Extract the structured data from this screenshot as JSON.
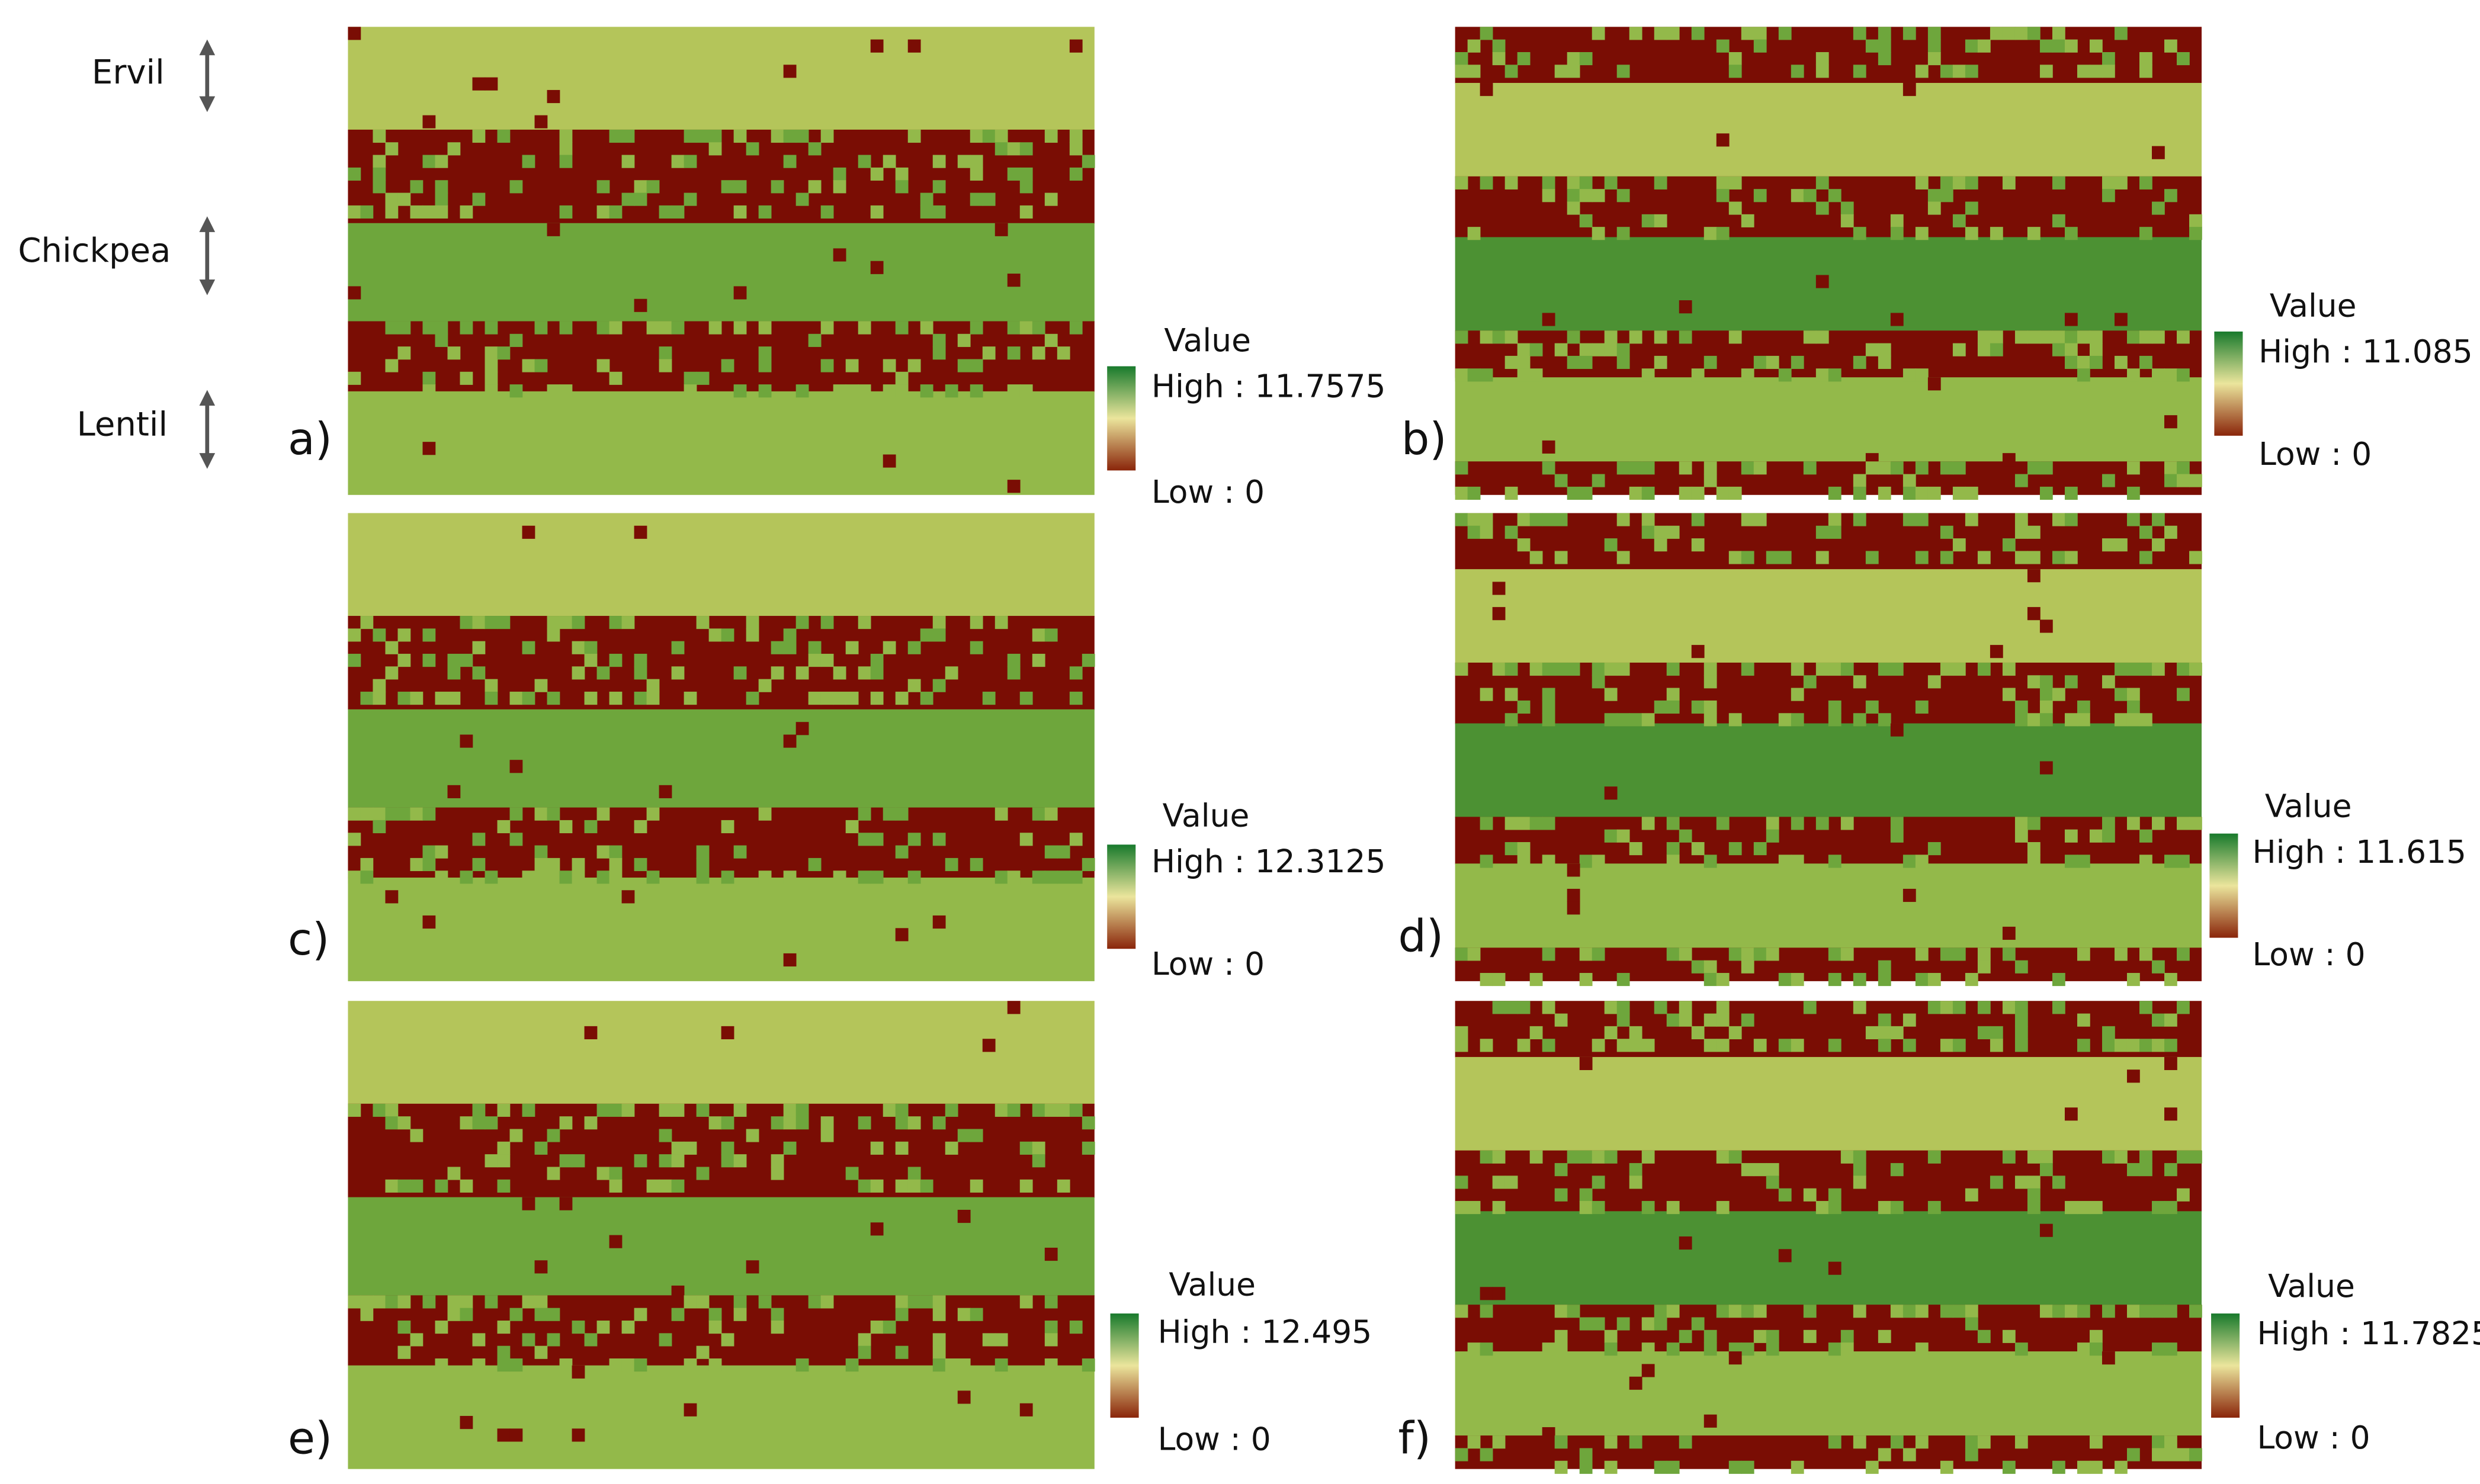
{
  "crop_labels": [
    "Ervil",
    "Chickpea",
    "Lentil"
  ],
  "panels": [
    {
      "label": "a)",
      "legend": {
        "title": "Value",
        "high": "High : 11.7575",
        "low": "Low : 0"
      }
    },
    {
      "label": "b)",
      "legend": {
        "title": "Value",
        "high": "High : 11.085",
        "low": "Low : 0"
      }
    },
    {
      "label": "c)",
      "legend": {
        "title": "Value",
        "high": "High : 12.3125",
        "low": "Low : 0"
      }
    },
    {
      "label": "d)",
      "legend": {
        "title": "Value",
        "high": "High : 11.615",
        "low": "Low : 0"
      }
    },
    {
      "label": "e)",
      "legend": {
        "title": "Value",
        "high": "High : 12.495",
        "low": "Low : 0"
      }
    },
    {
      "label": "f)",
      "legend": {
        "title": "Value",
        "high": "High : 11.7825",
        "low": "Low : 0"
      }
    }
  ]
}
